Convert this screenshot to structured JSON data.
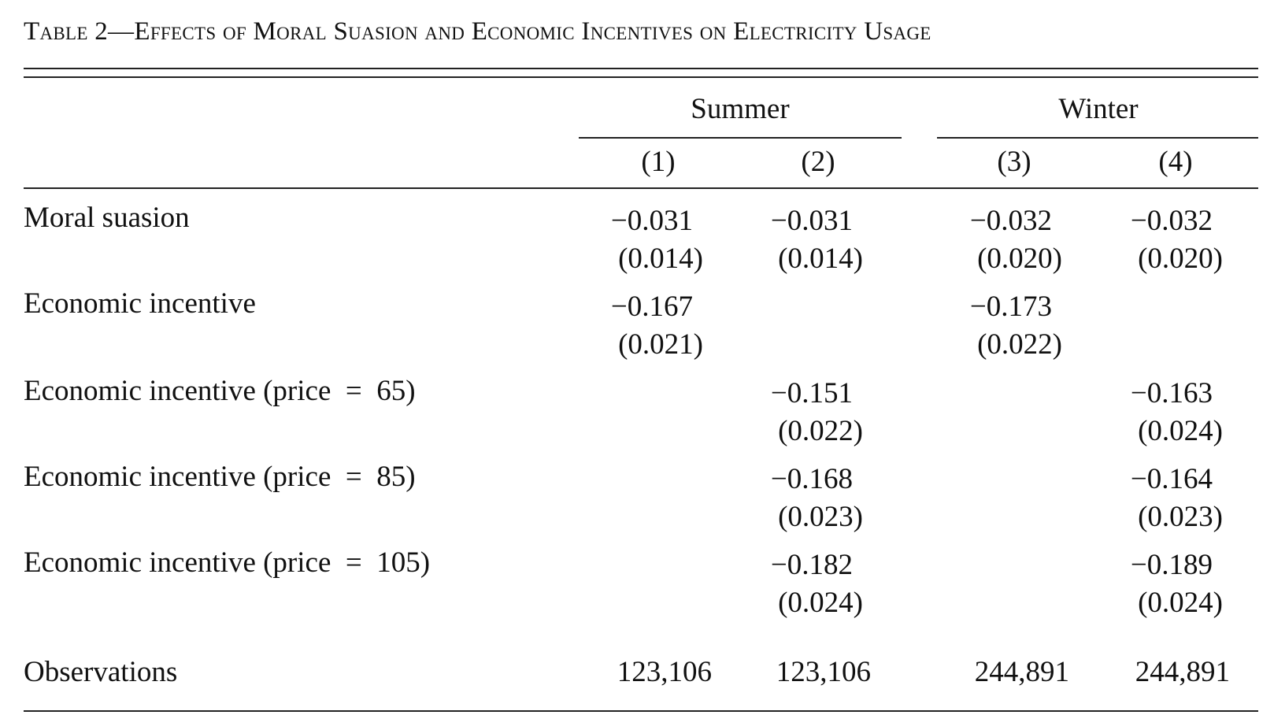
{
  "table": {
    "title": "Table 2—Effects of Moral Suasion and Economic Incentives on Electricity Usage",
    "groups": [
      "Summer",
      "Winter"
    ],
    "columns": [
      "(1)",
      "(2)",
      "(3)",
      "(4)"
    ],
    "rows": [
      {
        "label": "Moral suasion",
        "coef": [
          "−0.031",
          "−0.031",
          "−0.032",
          "−0.032"
        ],
        "se": [
          "(0.014)",
          "(0.014)",
          "(0.020)",
          "(0.020)"
        ]
      },
      {
        "label": "Economic incentive",
        "coef": [
          "−0.167",
          "",
          "−0.173",
          ""
        ],
        "se": [
          "(0.021)",
          "",
          "(0.022)",
          ""
        ]
      },
      {
        "label": "Economic incentive (price  =  65)",
        "coef": [
          "",
          "−0.151",
          "",
          "−0.163"
        ],
        "se": [
          "",
          "(0.022)",
          "",
          "(0.024)"
        ]
      },
      {
        "label": "Economic incentive (price  =  85)",
        "coef": [
          "",
          "−0.168",
          "",
          "−0.164"
        ],
        "se": [
          "",
          "(0.023)",
          "",
          "(0.023)"
        ]
      },
      {
        "label": "Economic incentive (price  =  105)",
        "coef": [
          "",
          "−0.182",
          "",
          "−0.189"
        ],
        "se": [
          "",
          "(0.024)",
          "",
          "(0.024)"
        ]
      }
    ],
    "observations": {
      "label": "Observations",
      "values": [
        "123,106",
        "123,106",
        "244,891",
        "244,891"
      ]
    }
  }
}
